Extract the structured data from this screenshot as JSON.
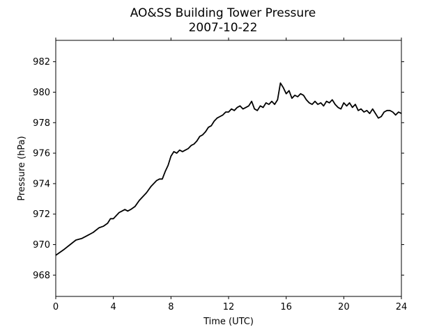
{
  "chart_data": {
    "type": "line",
    "title": "AO&SS Building Tower Pressure",
    "subtitle": "2007-10-22",
    "xlabel": "Time (UTC)",
    "ylabel": "Pressure (hPa)",
    "xlim": [
      0,
      24
    ],
    "ylim": [
      966.6,
      983.4
    ],
    "xticks": [
      0,
      4,
      8,
      12,
      16,
      20,
      24
    ],
    "xtick_labels": [
      "0",
      "4",
      "8",
      "12",
      "16",
      "20",
      "24"
    ],
    "yticks": [
      968,
      970,
      972,
      974,
      976,
      978,
      980,
      982
    ],
    "ytick_labels": [
      "968",
      "970",
      "972",
      "974",
      "976",
      "978",
      "980",
      "982"
    ],
    "grid": false,
    "line_color": "#000000",
    "series": [
      {
        "x": [
          0,
          0.3,
          0.6,
          1.0,
          1.4,
          1.8,
          2.2,
          2.6,
          3.0,
          3.3,
          3.6,
          3.8,
          4.0,
          4.2,
          4.4,
          4.6,
          4.8,
          5.0,
          5.2,
          5.5,
          5.8,
          6.0,
          6.3,
          6.6,
          7.0,
          7.2,
          7.4,
          7.6,
          7.8,
          8.0,
          8.2,
          8.4,
          8.6,
          8.8,
          9.0,
          9.2,
          9.4,
          9.6,
          9.8,
          10.0,
          10.2,
          10.4,
          10.6,
          10.8,
          11.0,
          11.2,
          11.4,
          11.6,
          11.8,
          12.0,
          12.2,
          12.4,
          12.6,
          12.8,
          13.0,
          13.2,
          13.4,
          13.6,
          13.8,
          14.0,
          14.2,
          14.4,
          14.6,
          14.8,
          15.0,
          15.2,
          15.4,
          15.6,
          15.8,
          16.0,
          16.2,
          16.4,
          16.6,
          16.8,
          17.0,
          17.2,
          17.4,
          17.6,
          17.8,
          18.0,
          18.2,
          18.4,
          18.6,
          18.8,
          19.0,
          19.2,
          19.4,
          19.6,
          19.8,
          20.0,
          20.2,
          20.4,
          20.6,
          20.8,
          21.0,
          21.2,
          21.4,
          21.6,
          21.8,
          22.0,
          22.2,
          22.4,
          22.6,
          22.8,
          23.0,
          23.2,
          23.4,
          23.6,
          23.8,
          24.0
        ],
        "values": [
          969.3,
          969.5,
          969.7,
          970.0,
          970.3,
          970.4,
          970.6,
          970.8,
          971.1,
          971.2,
          971.4,
          971.7,
          971.7,
          971.9,
          972.1,
          972.2,
          972.3,
          972.2,
          972.3,
          972.5,
          972.9,
          973.1,
          973.4,
          973.8,
          974.2,
          974.3,
          974.3,
          974.8,
          975.2,
          975.8,
          976.1,
          976.0,
          976.2,
          976.1,
          976.2,
          976.3,
          976.5,
          976.6,
          976.8,
          977.1,
          977.2,
          977.4,
          977.7,
          977.8,
          978.1,
          978.3,
          978.4,
          978.5,
          978.7,
          978.7,
          978.9,
          978.8,
          979.0,
          979.1,
          978.9,
          979.0,
          979.1,
          979.4,
          978.9,
          978.8,
          979.1,
          979.0,
          979.3,
          979.2,
          979.4,
          979.2,
          979.5,
          980.6,
          980.3,
          979.9,
          980.1,
          979.6,
          979.8,
          979.7,
          979.9,
          979.8,
          979.5,
          979.3,
          979.2,
          979.4,
          979.2,
          979.3,
          979.1,
          979.4,
          979.3,
          979.5,
          979.2,
          979.0,
          978.9,
          979.3,
          979.1,
          979.3,
          979.0,
          979.2,
          978.8,
          978.9,
          978.7,
          978.8,
          978.6,
          978.9,
          978.6,
          978.3,
          978.4,
          978.7,
          978.8,
          978.8,
          978.7,
          978.5,
          978.7,
          978.6
        ]
      }
    ]
  }
}
